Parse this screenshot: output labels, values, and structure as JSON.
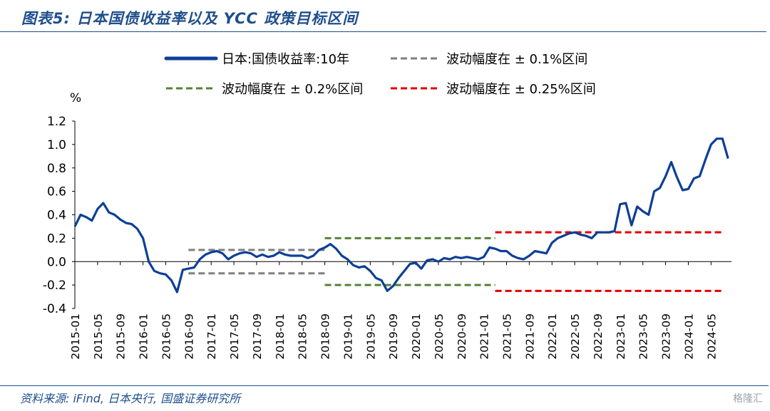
{
  "title": "图表5:  日本国债收益率以及 YCC 政策目标区间",
  "source": "资料来源:  iFind,  日本央行,  国盛证券研究所",
  "watermark": "格隆汇",
  "colors": {
    "yield": "#0d3f96",
    "band_01": "#7f7f7f",
    "band_02": "#548235",
    "band_025": "#e00000",
    "header": "#1f4e8c"
  },
  "chart_data": {
    "type": "line",
    "ylabel": "%",
    "ylim": [
      -0.4,
      1.2
    ],
    "yticks": [
      "1.2",
      "1.0",
      "0.8",
      "0.6",
      "0.4",
      "0.2",
      "0.0",
      "-0.2",
      "-0.4"
    ],
    "xticks": [
      "2015-01",
      "2015-05",
      "2015-09",
      "2016-01",
      "2016-05",
      "2016-09",
      "2017-01",
      "2017-05",
      "2017-09",
      "2018-01",
      "2018-05",
      "2018-09",
      "2019-01",
      "2019-05",
      "2019-09",
      "2020-01",
      "2020-05",
      "2020-09",
      "2021-01",
      "2021-05",
      "2021-09",
      "2022-01",
      "2022-05",
      "2022-09",
      "2023-01",
      "2023-05",
      "2023-09",
      "2024-01",
      "2024-05"
    ],
    "legend": [
      {
        "label": "日本:国债收益率:10年",
        "key": "yield"
      },
      {
        "label": "波动幅度在 ± 0.1%区间",
        "key": "band_01"
      },
      {
        "label": "波动幅度在 ± 0.2%区间",
        "key": "band_02"
      },
      {
        "label": "波动幅度在 ± 0.25%区间",
        "key": "band_025"
      }
    ],
    "series": [
      {
        "name": "日本:国债收益率:10年",
        "key": "yield",
        "x": [
          "2015-01",
          "2015-02",
          "2015-03",
          "2015-04",
          "2015-05",
          "2015-06",
          "2015-07",
          "2015-08",
          "2015-09",
          "2015-10",
          "2015-11",
          "2015-12",
          "2016-01",
          "2016-02",
          "2016-03",
          "2016-04",
          "2016-05",
          "2016-06",
          "2016-07",
          "2016-08",
          "2016-09",
          "2016-10",
          "2016-11",
          "2016-12",
          "2017-01",
          "2017-02",
          "2017-03",
          "2017-04",
          "2017-05",
          "2017-06",
          "2017-07",
          "2017-08",
          "2017-09",
          "2017-10",
          "2017-11",
          "2017-12",
          "2018-01",
          "2018-02",
          "2018-03",
          "2018-04",
          "2018-05",
          "2018-06",
          "2018-07",
          "2018-08",
          "2018-09",
          "2018-10",
          "2018-11",
          "2018-12",
          "2019-01",
          "2019-02",
          "2019-03",
          "2019-04",
          "2019-05",
          "2019-06",
          "2019-07",
          "2019-08",
          "2019-09",
          "2019-10",
          "2019-11",
          "2019-12",
          "2020-01",
          "2020-02",
          "2020-03",
          "2020-04",
          "2020-05",
          "2020-06",
          "2020-07",
          "2020-08",
          "2020-09",
          "2020-10",
          "2020-11",
          "2020-12",
          "2021-01",
          "2021-02",
          "2021-03",
          "2021-04",
          "2021-05",
          "2021-06",
          "2021-07",
          "2021-08",
          "2021-09",
          "2021-10",
          "2021-11",
          "2021-12",
          "2022-01",
          "2022-02",
          "2022-03",
          "2022-04",
          "2022-05",
          "2022-06",
          "2022-07",
          "2022-08",
          "2022-09",
          "2022-10",
          "2022-11",
          "2022-12",
          "2023-01",
          "2023-02",
          "2023-03",
          "2023-04",
          "2023-05",
          "2023-06",
          "2023-07",
          "2023-08",
          "2023-09",
          "2023-10",
          "2023-11",
          "2023-12",
          "2024-01",
          "2024-02",
          "2024-03",
          "2024-04",
          "2024-05",
          "2024-06",
          "2024-07",
          "2024-08"
        ],
        "values": [
          0.3,
          0.4,
          0.38,
          0.35,
          0.45,
          0.5,
          0.42,
          0.4,
          0.36,
          0.33,
          0.32,
          0.28,
          0.2,
          0.0,
          -0.08,
          -0.1,
          -0.11,
          -0.16,
          -0.26,
          -0.07,
          -0.06,
          -0.05,
          0.02,
          0.06,
          0.08,
          0.09,
          0.07,
          0.02,
          0.05,
          0.07,
          0.08,
          0.07,
          0.04,
          0.06,
          0.04,
          0.05,
          0.08,
          0.06,
          0.05,
          0.05,
          0.05,
          0.03,
          0.05,
          0.1,
          0.12,
          0.15,
          0.11,
          0.05,
          0.02,
          -0.03,
          -0.05,
          -0.04,
          -0.08,
          -0.14,
          -0.16,
          -0.25,
          -0.21,
          -0.14,
          -0.08,
          -0.02,
          -0.01,
          -0.06,
          0.01,
          0.02,
          0.0,
          0.03,
          0.02,
          0.04,
          0.03,
          0.04,
          0.03,
          0.02,
          0.04,
          0.12,
          0.11,
          0.09,
          0.09,
          0.05,
          0.03,
          0.02,
          0.05,
          0.09,
          0.08,
          0.07,
          0.16,
          0.2,
          0.22,
          0.24,
          0.25,
          0.23,
          0.22,
          0.2,
          0.25,
          0.25,
          0.25,
          0.26,
          0.49,
          0.5,
          0.31,
          0.47,
          0.43,
          0.4,
          0.6,
          0.63,
          0.73,
          0.85,
          0.72,
          0.61,
          0.62,
          0.71,
          0.73,
          0.87,
          1.0,
          1.05,
          1.05,
          0.88
        ]
      }
    ],
    "bands": [
      {
        "key": "band_01",
        "x_start": "2016-09",
        "x_end": "2018-09",
        "upper": 0.1,
        "lower": -0.1
      },
      {
        "key": "band_02",
        "x_start": "2018-09",
        "x_end": "2021-03",
        "upper": 0.2,
        "lower": -0.2
      },
      {
        "key": "band_025",
        "x_start": "2021-03",
        "x_end": "2024-07",
        "upper": 0.25,
        "lower": -0.25
      }
    ],
    "grid": false,
    "legend_position": "top"
  }
}
